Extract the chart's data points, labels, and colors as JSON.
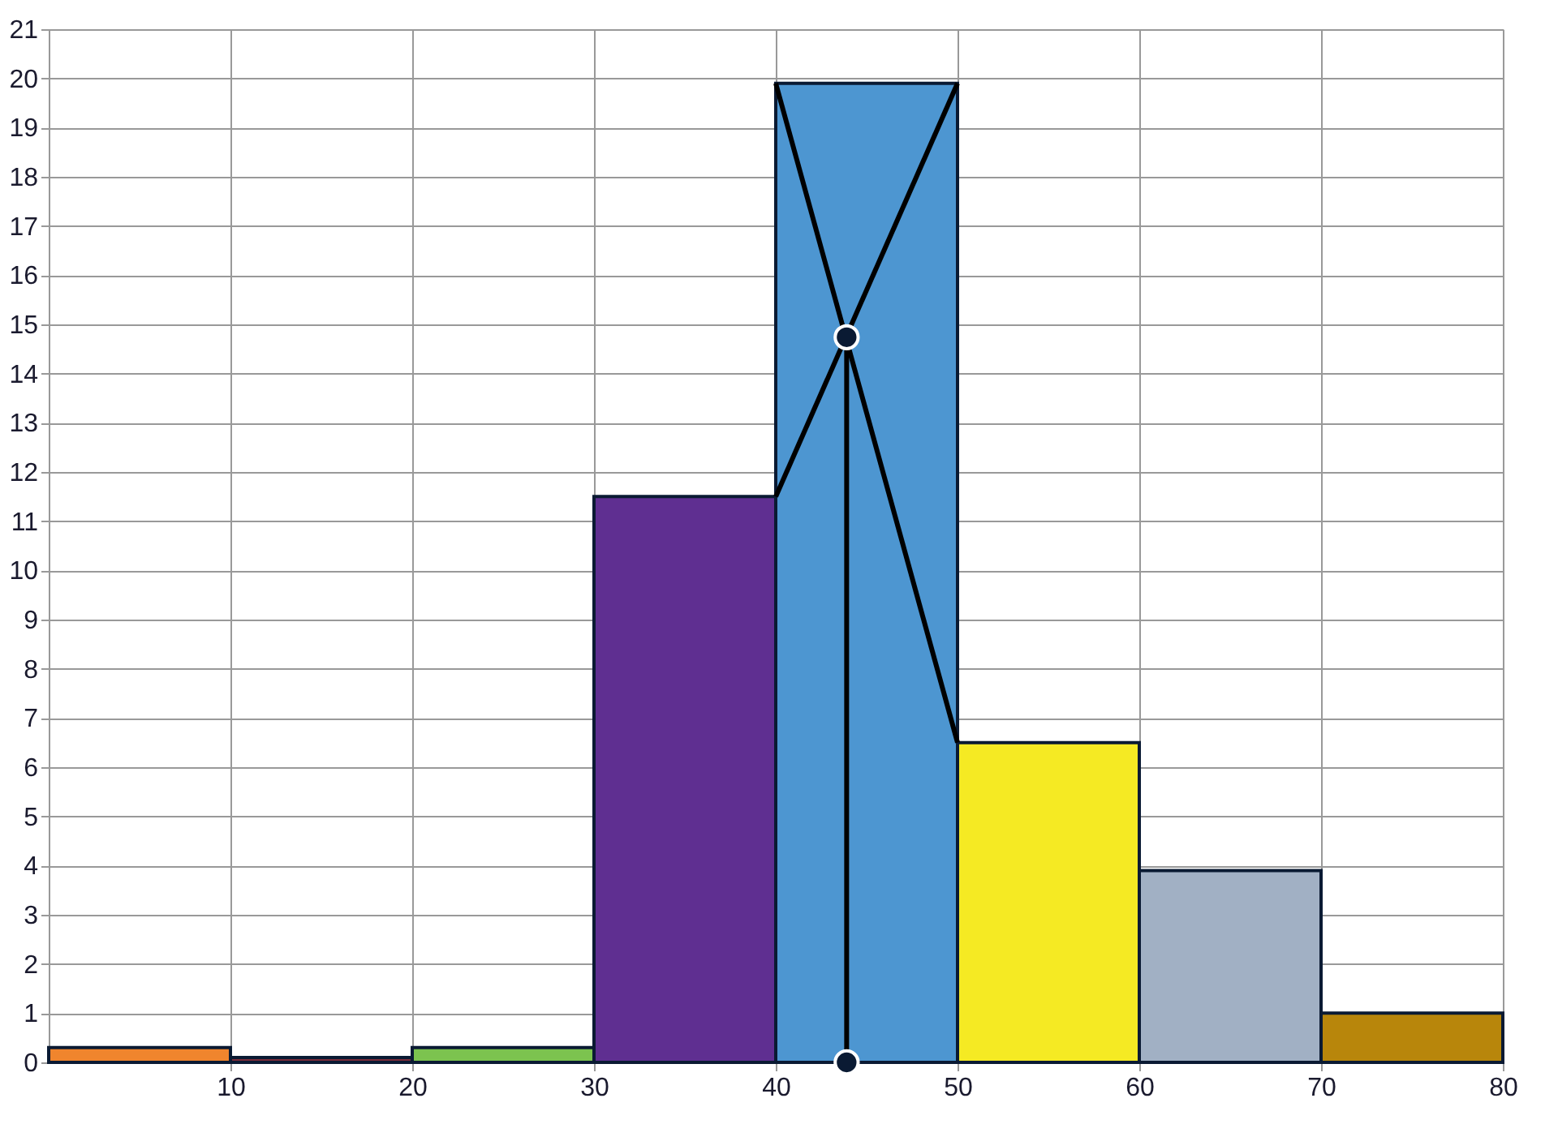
{
  "chart_data": {
    "type": "histogram",
    "bins": [
      0,
      10,
      20,
      30,
      40,
      50,
      60,
      70,
      80
    ],
    "values": [
      0.3,
      0.1,
      0.3,
      11.5,
      19.9,
      6.5,
      3.9,
      1.0
    ],
    "colors": [
      "#f0852d",
      "#7b2c3a",
      "#7cc34f",
      "#5f2f91",
      "#4d96d1",
      "#f5ea23",
      "#a1b0c4",
      "#b8860b"
    ],
    "series": [
      {
        "type": "line",
        "x": [
          40,
          50
        ],
        "values": [
          19.9,
          6.5
        ],
        "color": "#000000"
      },
      {
        "type": "line",
        "x": [
          40,
          50
        ],
        "values": [
          11.5,
          19.9
        ],
        "color": "#000000"
      },
      {
        "type": "line",
        "x": [
          43.9,
          43.9
        ],
        "values": [
          0,
          14.74
        ],
        "color": "#000000"
      },
      {
        "type": "scatter",
        "x": [
          43.9,
          43.9
        ],
        "values": [
          14.74,
          0
        ],
        "color": "#0a1a33",
        "marker": "circle"
      }
    ],
    "xlim": [
      0,
      80
    ],
    "xticks": [
      10,
      20,
      30,
      40,
      50,
      60,
      70,
      80
    ],
    "ylim": [
      0,
      21
    ],
    "yticks": [
      0,
      1,
      2,
      3,
      4,
      5,
      6,
      7,
      8,
      9,
      10,
      11,
      12,
      13,
      14,
      15,
      16,
      17,
      18,
      19,
      20,
      21
    ],
    "grid": true,
    "line_style": "solid"
  }
}
